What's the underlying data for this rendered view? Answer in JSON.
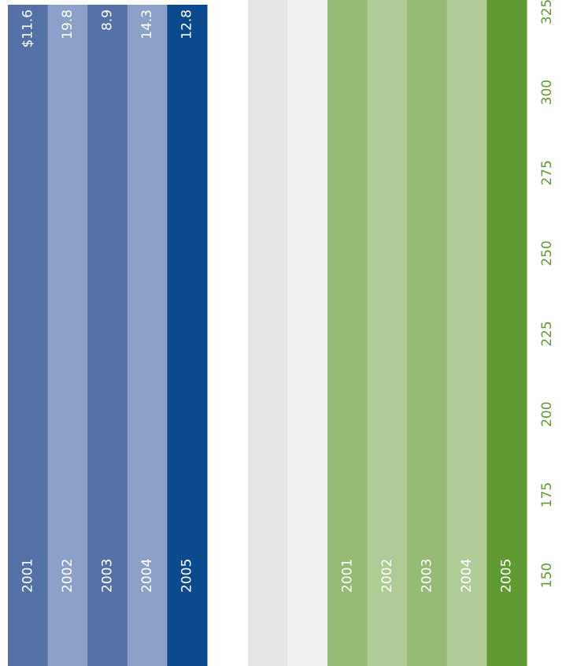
{
  "left_panel": {
    "categories": [
      "2001",
      "2002",
      "2003",
      "2004",
      "2005"
    ],
    "value_labels": [
      "$11.6",
      "19.8",
      "8.9",
      "14.3",
      "12.8"
    ]
  },
  "right_panel": {
    "categories": [
      "2001",
      "2002",
      "2003",
      "2004",
      "2005"
    ],
    "axis_ticks": [
      150,
      175,
      200,
      225,
      250,
      275,
      300,
      325
    ]
  }
}
